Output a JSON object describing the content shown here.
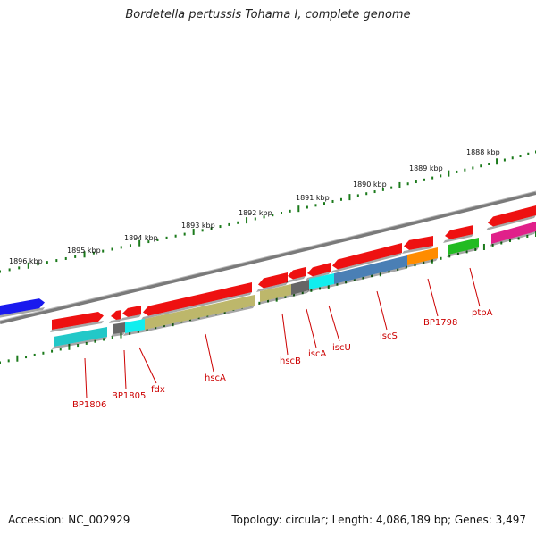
{
  "title": "Bordetella pertussis Tohama I, complete genome",
  "footer": {
    "accession": "Accession: NC_002929",
    "topology": "Topology: circular; Length: 4,086,189 bp; Genes: 3,497"
  },
  "kbp_labels": [
    "1896 kbp",
    "1895 kbp",
    "1894 kbp",
    "1893 kbp",
    "1892 kbp",
    "1891 kbp",
    "1890 kbp",
    "1889 kbp",
    "1888 kbp"
  ],
  "gene_labels": [
    "BP1806",
    "BP1805",
    "fdx",
    "hscA",
    "hscB",
    "iscA",
    "iscU",
    "iscS",
    "BP1798",
    "ptpA"
  ],
  "colors": {
    "backbone": "#7a7a7a",
    "tick": "#1b7a1b",
    "cds": "#ee1111",
    "label": "#cc0000",
    "blue": "#1a1aee",
    "cyan": "#22c8c8",
    "gray": "#666666",
    "brightcyan": "#11eeee",
    "khaki": "#bdb76b",
    "steel": "#4a7fb5",
    "orange": "#ff8c00",
    "green": "#22bb22",
    "magenta": "#e0208a"
  }
}
